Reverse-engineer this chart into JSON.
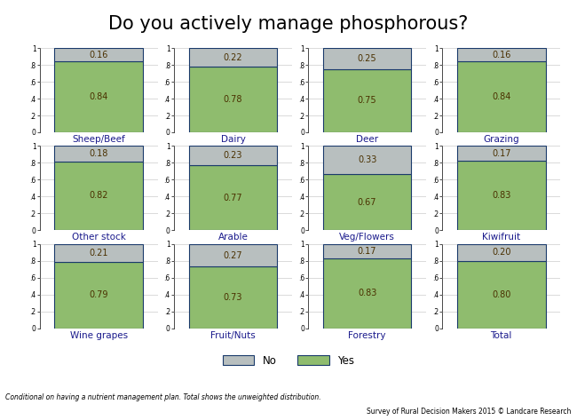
{
  "title": "Do you actively manage phosphorous?",
  "enterprises": [
    [
      "Sheep/Beef",
      "Dairy",
      "Deer",
      "Grazing"
    ],
    [
      "Other stock",
      "Arable",
      "Veg/Flowers",
      "Kiwifruit"
    ],
    [
      "Wine grapes",
      "Fruit/Nuts",
      "Forestry",
      "Total"
    ]
  ],
  "yes_values": [
    [
      0.84,
      0.78,
      0.75,
      0.84
    ],
    [
      0.82,
      0.77,
      0.67,
      0.83
    ],
    [
      0.79,
      0.73,
      0.83,
      0.8
    ]
  ],
  "no_values": [
    [
      0.16,
      0.22,
      0.25,
      0.16
    ],
    [
      0.18,
      0.23,
      0.33,
      0.17
    ],
    [
      0.21,
      0.27,
      0.17,
      0.2
    ]
  ],
  "yes_color": "#8fbc6e",
  "no_color": "#b8bfbf",
  "bar_edge_color": "#1a3a6b",
  "background_color": "#ffffff",
  "grid_color": "#cccccc",
  "label_color": "#1a1a8c",
  "text_color": "#4a3000",
  "footnote": "Conditional on having a nutrient management plan. Total shows the unweighted distribution.",
  "source": "Survey of Rural Decision Makers 2015 © Landcare Research",
  "title_fontsize": 15,
  "label_fontsize": 7.5,
  "tick_fontsize": 5.5,
  "value_fontsize": 7
}
